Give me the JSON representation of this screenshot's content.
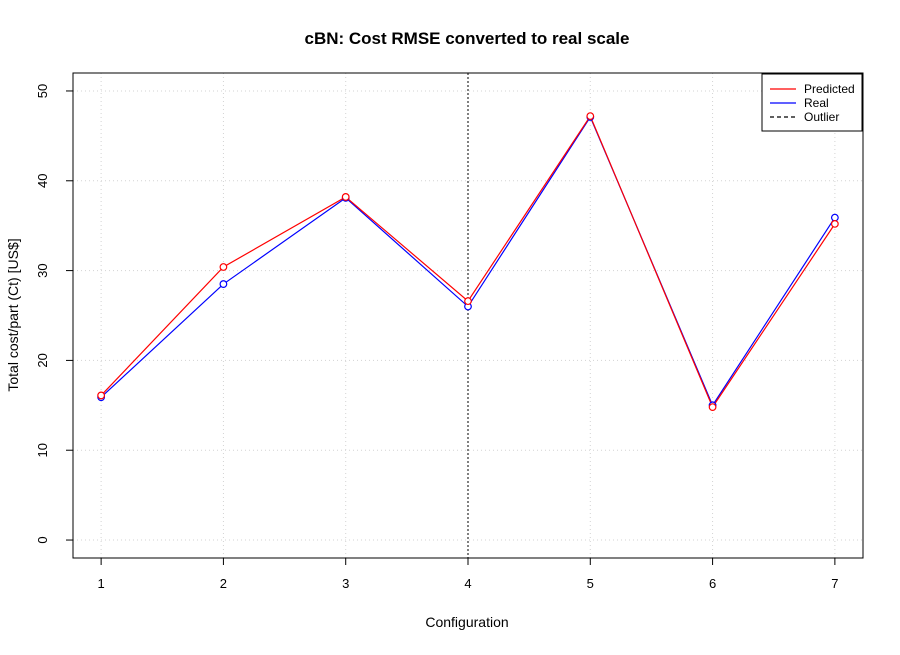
{
  "chart_data": {
    "type": "line",
    "title": "cBN: Cost RMSE converted to real scale",
    "xlabel": "Configuration",
    "ylabel": "Total cost/part (Ct) [US$]",
    "x": [
      1,
      2,
      3,
      4,
      5,
      6,
      7
    ],
    "xlim": [
      0.77,
      7.23
    ],
    "ylim": [
      -2,
      52
    ],
    "xticks": [
      "1",
      "2",
      "3",
      "4",
      "5",
      "6",
      "7"
    ],
    "yticks": [
      "0",
      "10",
      "20",
      "30",
      "40",
      "50"
    ],
    "grid": true,
    "legend_position": "top-right",
    "series": [
      {
        "name": "Predicted",
        "color": "#ff0000",
        "line": "solid",
        "marker": "open-circle",
        "values": [
          16.1,
          30.4,
          38.2,
          26.6,
          47.2,
          14.8,
          35.2
        ]
      },
      {
        "name": "Real",
        "color": "#0000ff",
        "line": "solid",
        "marker": "open-circle",
        "values": [
          15.9,
          28.5,
          38.1,
          26.0,
          47.1,
          15.0,
          35.9
        ]
      }
    ],
    "outlier": {
      "name": "Outlier",
      "x": 4,
      "color": "#000000",
      "line": "dashed"
    }
  }
}
